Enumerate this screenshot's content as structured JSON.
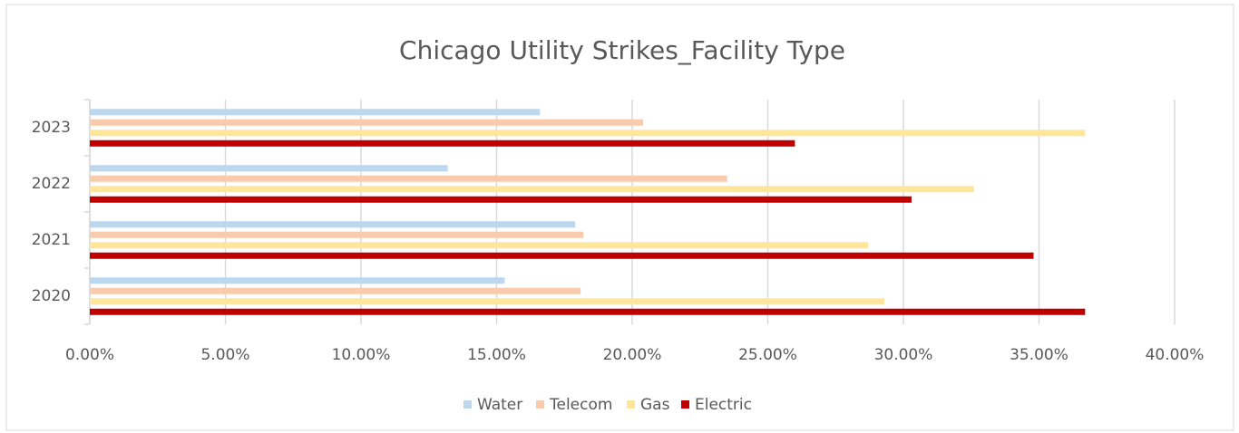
{
  "chart_data": {
    "type": "barh",
    "title": "Chicago Utility Strikes_Facility Type",
    "categories": [
      "2020",
      "2021",
      "2022",
      "2023"
    ],
    "series": [
      {
        "name": "Water",
        "color": "#bdd7ee",
        "values": [
          15.3,
          17.9,
          13.2,
          16.6
        ]
      },
      {
        "name": "Telecom",
        "color": "#f8cbad",
        "values": [
          18.1,
          18.2,
          23.5,
          20.4
        ]
      },
      {
        "name": "Gas",
        "color": "#ffe699",
        "values": [
          29.3,
          28.7,
          32.6,
          36.7
        ]
      },
      {
        "name": "Electric",
        "color": "#c00000",
        "values": [
          36.7,
          34.8,
          30.3,
          26.0
        ]
      }
    ],
    "xlim": [
      0,
      40
    ],
    "xticks": [
      {
        "value": 0,
        "label": "0.00%"
      },
      {
        "value": 5,
        "label": "5.00%"
      },
      {
        "value": 10,
        "label": "10.00%"
      },
      {
        "value": 15,
        "label": "15.00%"
      },
      {
        "value": 20,
        "label": "20.00%"
      },
      {
        "value": 25,
        "label": "25.00%"
      },
      {
        "value": 30,
        "label": "30.00%"
      },
      {
        "value": 35,
        "label": "35.00%"
      },
      {
        "value": 40,
        "label": "40.00%"
      }
    ],
    "grid": true,
    "legend": "bottom"
  }
}
